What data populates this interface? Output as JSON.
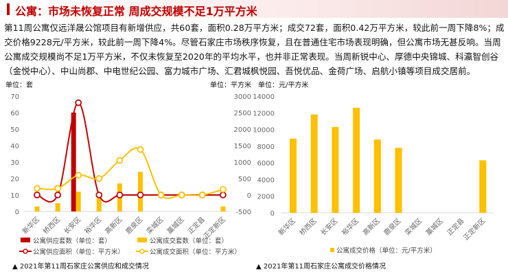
{
  "header": {
    "title": "公寓：市场未恢复正常 周成交规模不足1万平方米"
  },
  "paragraph": "第11周公寓仅远洋晟公馆项目有新增供应，共60套，面积0.28万平方米；成交72套，面积0.42万平方米，较此前一周下降8%；成交价格9228元/平方米，较此前一周下降4%。尽管石家庄市场秩序恢复，且在普通住宅市场表现明确，但公寓市场无甚反响。当周公寓成交规模尚不足1万平方米，不仅未恢复至2020年的平均水平，也并非正常表现。当周新锐中心、厚德中央锦城、科瀛智创谷（金悦中心）、中山尚郡、中电世纪公园、富力城市广场、汇君城枫悦园、吾悦优品、金荷广场、启航小镇等项目成交居前。",
  "chart_data": [
    {
      "type": "bar+line",
      "title": "▲ 2021年第11周石家庄公寓供应和成交情况",
      "categories": [
        "新华区",
        "桥西区",
        "长安区",
        "裕华区",
        "高新区",
        "鹿泉区",
        "栾城区",
        "藁城区",
        "正定县",
        "正定新区"
      ],
      "left_unit": "单位：套",
      "right_unit": "单位：平方米",
      "left_ylim": [
        0,
        70
      ],
      "left_ticks": [
        "0",
        "10",
        "20",
        "30",
        "40",
        "50",
        "60",
        "70"
      ],
      "right_ylim": [
        -500,
        3000
      ],
      "right_ticks": [
        "-500",
        "0",
        "500",
        "1000",
        "1500",
        "2000",
        "2500",
        "3000"
      ],
      "series": [
        {
          "name": "公寓供应套数（单位：套）",
          "kind": "bar",
          "axis": "left",
          "color": "#c00000",
          "values": [
            0,
            0,
            60,
            0,
            0,
            0,
            0,
            0,
            0,
            0
          ]
        },
        {
          "name": "公寓成交套数（单位：套）",
          "kind": "bar",
          "axis": "left",
          "color": "#ffc000",
          "values": [
            3,
            5,
            12,
            8,
            17,
            24,
            0,
            0,
            0,
            3
          ]
        },
        {
          "name": "公寓供应面积（单位：平方米）",
          "kind": "line",
          "axis": "right",
          "color": "#c00000",
          "values": [
            0,
            0,
            2800,
            0,
            0,
            0,
            0,
            0,
            0,
            0
          ]
        },
        {
          "name": "公寓成交面积（单位：平方米）",
          "kind": "line",
          "axis": "right",
          "color": "#ffc000",
          "values": [
            200,
            200,
            600,
            500,
            1050,
            1380,
            0,
            0,
            0,
            170
          ]
        }
      ]
    },
    {
      "type": "bar",
      "title": "▲ 2021年第11周石家庄公寓成交价格情况",
      "categories": [
        "新华区",
        "桥西区",
        "长安区",
        "裕华区",
        "高新区",
        "鹿泉区",
        "栾城区",
        "藁城区",
        "正定县",
        "正定新区"
      ],
      "unit": "单位：元/平方米",
      "ylim": [
        0,
        14000
      ],
      "ticks": [
        "0",
        "2000",
        "4000",
        "6000",
        "8000",
        "10000",
        "12000",
        "14000"
      ],
      "series": [
        {
          "name": "公寓成交价格（单位：元/平方米）",
          "color": "#ffc000",
          "values": [
            8900,
            11800,
            10300,
            12600,
            8800,
            7800,
            0,
            0,
            0,
            6300
          ]
        }
      ]
    }
  ]
}
